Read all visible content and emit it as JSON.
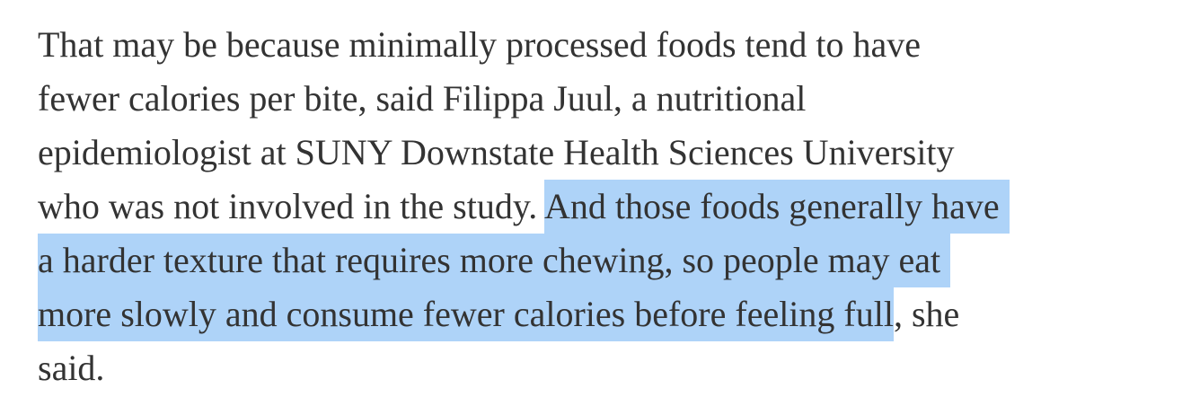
{
  "colors": {
    "background": "#ffffff",
    "text": "#333333",
    "selection_highlight": "#aed3f8"
  },
  "paragraph": {
    "full_text": "That may be because minimally processed foods tend to have fewer calories per bite, said Filippa Juul, a nutritional epidemiologist at SUNY Downstate Health Sciences University who was not involved in the study. And those foods generally have a harder texture that requires more chewing, so people may eat more slowly and consume fewer calories before feeling full, she said.",
    "lines": [
      {
        "segments": [
          {
            "text": "That may be because minimally processed foods tend to have",
            "highlighted": false
          }
        ]
      },
      {
        "segments": [
          {
            "text": "fewer calories per bite, said Filippa Juul, a nutritional",
            "highlighted": false
          }
        ]
      },
      {
        "segments": [
          {
            "text": "epidemiologist at SUNY Downstate Health Sciences University",
            "highlighted": false
          }
        ]
      },
      {
        "segments": [
          {
            "text": "who was not involved in the study. ",
            "highlighted": false
          },
          {
            "text": "And those foods generally have",
            "highlighted": true
          }
        ]
      },
      {
        "segments": [
          {
            "text": "a harder texture that requires more chewing, so people may eat",
            "highlighted": true
          }
        ]
      },
      {
        "segments": [
          {
            "text": "more slowly and consume fewer calories before feeling full",
            "highlighted": true
          },
          {
            "text": ", she",
            "highlighted": false
          }
        ]
      },
      {
        "segments": [
          {
            "text": "said.",
            "highlighted": false
          }
        ]
      }
    ]
  },
  "selection": {
    "selected_text": "And those foods generally have a harder texture that requires more chewing, so people may eat more slowly and consume fewer calories before feeling full"
  }
}
